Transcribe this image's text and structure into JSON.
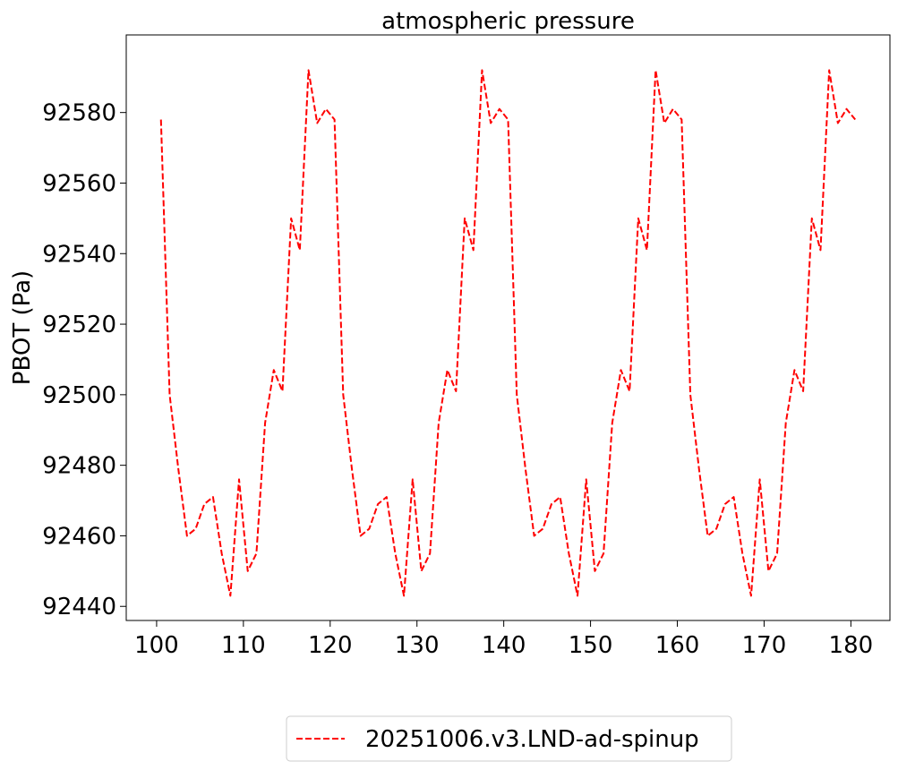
{
  "chart_data": {
    "type": "line",
    "title": "atmospheric pressure",
    "xlabel": "",
    "ylabel": "PBOT (Pa)",
    "xlim": [
      96.5,
      184.5
    ],
    "ylim": [
      92436,
      92602
    ],
    "xticks": [
      100,
      110,
      120,
      130,
      140,
      150,
      160,
      170,
      180
    ],
    "yticks": [
      92440,
      92460,
      92480,
      92500,
      92520,
      92540,
      92560,
      92580
    ],
    "grid": false,
    "legend_position": "below",
    "series": [
      {
        "name": "20251006.v3.LND-ad-spinup",
        "color": "#ff0000",
        "linestyle": "dashed",
        "x": [
          100.5,
          101.5,
          102.5,
          103.5,
          104.5,
          105.5,
          106.5,
          107.5,
          108.5,
          109.5,
          110.5,
          111.5,
          112.5,
          113.5,
          114.5,
          115.5,
          116.5,
          117.5,
          118.5,
          119.5,
          120.5,
          121.5,
          122.5,
          123.5,
          124.5,
          125.5,
          126.5,
          127.5,
          128.5,
          129.5,
          130.5,
          131.5,
          132.5,
          133.5,
          134.5,
          135.5,
          136.5,
          137.5,
          138.5,
          139.5,
          140.5,
          141.5,
          142.5,
          143.5,
          144.5,
          145.5,
          146.5,
          147.5,
          148.5,
          149.5,
          150.5,
          151.5,
          152.5,
          153.5,
          154.5,
          155.5,
          156.5,
          157.5,
          158.5,
          159.5,
          160.5,
          161.5,
          162.5,
          163.5,
          164.5,
          165.5,
          166.5,
          167.5,
          168.5,
          169.5,
          170.5,
          171.5,
          172.5,
          173.5,
          174.5,
          175.5,
          176.5,
          177.5,
          178.5,
          179.5,
          180.5
        ],
        "y": [
          92578,
          92500,
          92479,
          92460,
          92462,
          92469,
          92471,
          92455,
          92443,
          92476,
          92450,
          92455,
          92492,
          92507,
          92501,
          92550,
          92541,
          92592,
          92577,
          92581,
          92578,
          92500,
          92479,
          92460,
          92462,
          92469,
          92471,
          92455,
          92443,
          92476,
          92450,
          92455,
          92492,
          92507,
          92501,
          92550,
          92541,
          92592,
          92577,
          92581,
          92578,
          92500,
          92479,
          92460,
          92462,
          92469,
          92471,
          92455,
          92443,
          92476,
          92450,
          92455,
          92492,
          92507,
          92501,
          92550,
          92541,
          92592,
          92577,
          92581,
          92578,
          92500,
          92479,
          92460,
          92462,
          92469,
          92471,
          92455,
          92443,
          92476,
          92450,
          92455,
          92492,
          92507,
          92501,
          92550,
          92541,
          92592,
          92577,
          92581,
          92578
        ]
      }
    ]
  }
}
